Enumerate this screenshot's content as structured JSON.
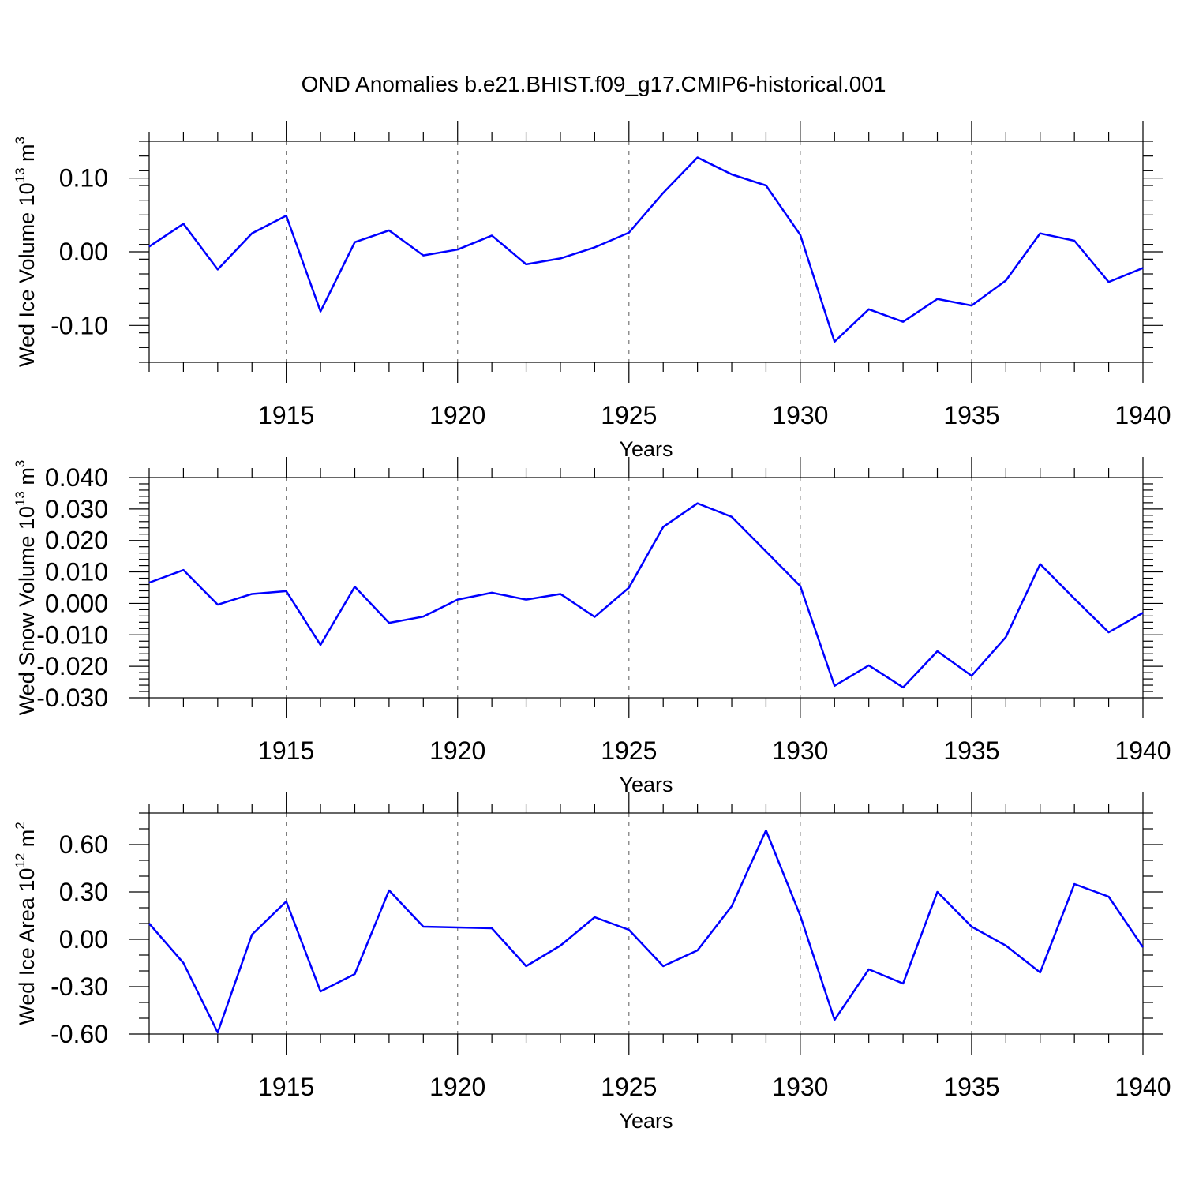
{
  "chart_data": {
    "type": "line",
    "title": "OND Anomalies b.e21.BHIST.f09_g17.CMIP6-historical.001",
    "line_color": "#0000ff",
    "x": [
      1911,
      1912,
      1913,
      1914,
      1915,
      1916,
      1917,
      1918,
      1919,
      1920,
      1921,
      1922,
      1923,
      1924,
      1925,
      1926,
      1927,
      1928,
      1929,
      1930,
      1931,
      1932,
      1933,
      1934,
      1935,
      1936,
      1937,
      1938,
      1939,
      1940
    ],
    "xlim": [
      1911,
      1940
    ],
    "xticks": [
      1915,
      1920,
      1925,
      1930,
      1935,
      1940
    ],
    "xtick_labels": [
      "1915",
      "1920",
      "1925",
      "1930",
      "1935",
      "1940"
    ],
    "panels": [
      {
        "name": "ice-volume",
        "xlabel": "Years",
        "ylabel_main": "Wed Ice Volume 10",
        "ylabel_exp": "13",
        "ylabel_unit": " m",
        "ylabel_unit_exp": "3",
        "ylim": [
          -0.15,
          0.15
        ],
        "yticks": [
          -0.1,
          0.0,
          0.1
        ],
        "ytick_labels": [
          "-0.10",
          "0.00",
          "0.10"
        ],
        "minor_y_step": 0.02,
        "values": [
          0.007,
          0.038,
          -0.024,
          0.025,
          0.049,
          -0.081,
          0.013,
          0.029,
          -0.005,
          0.003,
          0.022,
          -0.017,
          -0.009,
          0.006,
          0.026,
          0.08,
          0.128,
          0.105,
          0.09,
          0.023,
          -0.122,
          -0.078,
          -0.095,
          -0.064,
          -0.073,
          -0.039,
          0.025,
          0.015,
          -0.041,
          -0.022
        ]
      },
      {
        "name": "snow-volume",
        "xlabel": "Years",
        "ylabel_main": "Wed Snow Volume 10",
        "ylabel_exp": "13",
        "ylabel_unit": " m",
        "ylabel_unit_exp": "3",
        "ylim": [
          -0.03,
          0.04
        ],
        "yticks": [
          -0.03,
          -0.02,
          -0.01,
          0.0,
          0.01,
          0.02,
          0.03,
          0.04
        ],
        "ytick_labels": [
          "-0.030",
          "-0.020",
          "-0.010",
          "0.000",
          "0.010",
          "0.020",
          "0.030",
          "0.040"
        ],
        "minor_y_step": 0.002,
        "values": [
          0.0066,
          0.0106,
          -0.0004,
          0.003,
          0.0039,
          -0.0132,
          0.0053,
          -0.0062,
          -0.0042,
          0.0012,
          0.0034,
          0.0012,
          0.003,
          -0.0043,
          0.005,
          0.0243,
          0.0318,
          0.0275,
          0.0165,
          0.0055,
          -0.0262,
          -0.0197,
          -0.0267,
          -0.0152,
          -0.023,
          -0.0107,
          0.0125,
          0.0015,
          -0.0092,
          -0.003
        ]
      },
      {
        "name": "ice-area",
        "xlabel": "Years",
        "ylabel_main": "Wed Ice Area 10",
        "ylabel_exp": "12",
        "ylabel_unit": " m",
        "ylabel_unit_exp": "2",
        "ylim": [
          -0.6,
          0.8
        ],
        "yticks": [
          -0.6,
          -0.3,
          0.0,
          0.3,
          0.6
        ],
        "ytick_labels": [
          "-0.60",
          "-0.30",
          "0.00",
          "0.30",
          "0.60"
        ],
        "minor_y_step": 0.1,
        "values": [
          0.1,
          -0.15,
          -0.59,
          0.03,
          0.24,
          -0.33,
          -0.22,
          0.31,
          0.08,
          0.075,
          0.07,
          -0.17,
          -0.04,
          0.14,
          0.06,
          -0.17,
          -0.07,
          0.21,
          0.69,
          0.15,
          -0.51,
          -0.19,
          -0.28,
          0.3,
          0.08,
          -0.04,
          -0.21,
          0.35,
          0.27,
          -0.05
        ]
      }
    ]
  }
}
